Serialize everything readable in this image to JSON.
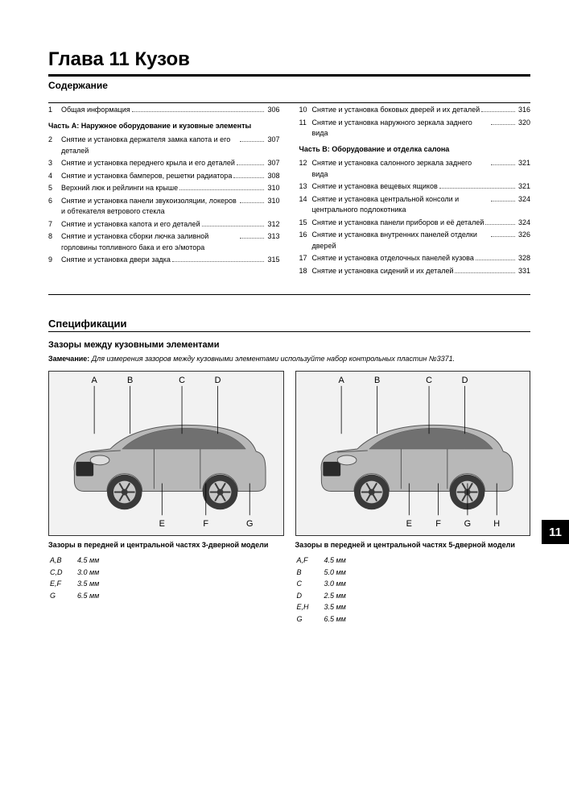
{
  "chapter": {
    "title": "Глава 11 Кузов",
    "tab": "11",
    "contents_heading": "Содержание"
  },
  "toc_left": {
    "part_a": "Часть А: Наружное оборудование и кузовные элементы",
    "items": [
      {
        "n": "1",
        "t": "Общая информация",
        "p": "306"
      },
      {
        "n": "2",
        "t": "Снятие и установка держателя замка капота и его деталей",
        "p": "307"
      },
      {
        "n": "3",
        "t": "Снятие и установка переднего крыла и его деталей",
        "p": "307"
      },
      {
        "n": "4",
        "t": "Снятие и установка бамперов, решетки радиатора",
        "p": "308"
      },
      {
        "n": "5",
        "t": "Верхний люк и рейлинги на крыше",
        "p": "310"
      },
      {
        "n": "6",
        "t": "Снятие и установка панели звукоизоляции, локеров и обтекателя ветрового стекла",
        "p": "310"
      },
      {
        "n": "7",
        "t": "Снятие и установка капота и его деталей",
        "p": "312"
      },
      {
        "n": "8",
        "t": "Снятие и установка сборки лючка заливной горловины топливного бака и его э/мотора",
        "p": "313"
      },
      {
        "n": "9",
        "t": "Снятие и установка двери задка",
        "p": "315"
      }
    ]
  },
  "toc_right": {
    "part_b": "Часть В: Оборудование и отделка салона",
    "items_top": [
      {
        "n": "10",
        "t": "Снятие и установка боковых дверей и их деталей",
        "p": "316"
      },
      {
        "n": "11",
        "t": "Снятие и установка наружного зеркала заднего вида",
        "p": "320"
      }
    ],
    "items_bottom": [
      {
        "n": "12",
        "t": "Снятие и установка салонного зеркала заднего вида",
        "p": "321"
      },
      {
        "n": "13",
        "t": "Снятие и установка вещевых ящиков",
        "p": "321"
      },
      {
        "n": "14",
        "t": "Снятие и установка центральной консоли и центрального подлокотника",
        "p": "324"
      },
      {
        "n": "15",
        "t": "Снятие и установка панели приборов и её деталей",
        "p": "324"
      },
      {
        "n": "16",
        "t": "Снятие и установка внутренних панелей отделки дверей",
        "p": "326"
      },
      {
        "n": "17",
        "t": "Снятие и установка отделочных панелей кузова",
        "p": "328"
      },
      {
        "n": "18",
        "t": "Снятие и установка сидений и их деталей",
        "p": "331"
      }
    ]
  },
  "spec": {
    "heading": "Спецификации",
    "sub": "Зазоры между кузовными элементами",
    "note_label": "Замечание:",
    "note_text": "Для измерения зазоров между кузовными элементами используйте набор контрольных пластин №3371."
  },
  "fig1": {
    "caption": "Зазоры в передней и центральной частях 3-дверной модели",
    "labels_top": [
      "A",
      "B",
      "C",
      "D"
    ],
    "labels_bottom": [
      "E",
      "F",
      "G"
    ],
    "rows": [
      [
        "A,B",
        "4.5 мм"
      ],
      [
        "C,D",
        "3.0 мм"
      ],
      [
        "E,F",
        "3.5 мм"
      ],
      [
        "G",
        "6.5 мм"
      ]
    ]
  },
  "fig2": {
    "caption": "Зазоры в передней и центральной частях 5-дверной модели",
    "labels_top": [
      "A",
      "B",
      "C",
      "D"
    ],
    "labels_bottom": [
      "E",
      "F",
      "G",
      "H"
    ],
    "rows": [
      [
        "A,F",
        "4.5 мм"
      ],
      [
        "B",
        "5.0 мм"
      ],
      [
        "C",
        "3.0 мм"
      ],
      [
        "D",
        "2.5 мм"
      ],
      [
        "E,H",
        "3.5 мм"
      ],
      [
        "G",
        "6.5 мм"
      ]
    ]
  },
  "svg": {
    "body_fill": "#b8b8b8",
    "body_stroke": "#555555",
    "glass_fill": "#707070",
    "wheel_fill": "#3a3a3a",
    "rim_fill": "#c8c8c8",
    "line_stroke": "#000000",
    "bg": "#f2f2f2"
  }
}
